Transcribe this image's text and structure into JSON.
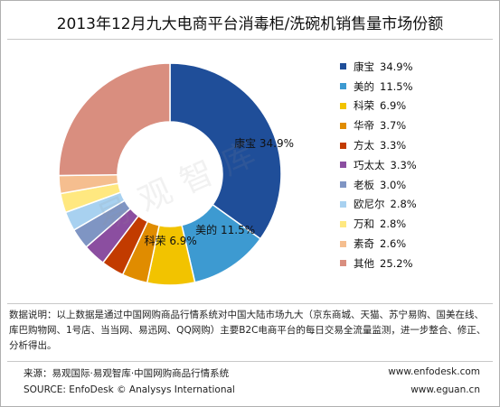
{
  "title": "2013年12月九大电商平台消毒柜/洗碗机销售量市场份额",
  "chart_data": {
    "type": "pie",
    "donut": true,
    "categories": [
      "康宝",
      "美的",
      "科荣",
      "华帝",
      "方太",
      "巧太太",
      "老板",
      "欧尼尔",
      "万和",
      "素奇",
      "其他"
    ],
    "values": [
      34.9,
      11.5,
      6.9,
      3.7,
      3.3,
      3.3,
      3.0,
      2.8,
      2.8,
      2.6,
      25.2
    ],
    "value_labels": [
      "34.9%",
      "11.5%",
      "6.9%",
      "3.7%",
      "3.3%",
      "3.3%",
      "3.0%",
      "2.8%",
      "2.8%",
      "2.6%",
      "25.2%"
    ],
    "colors": [
      "#1f4e99",
      "#3d9ad1",
      "#f2c300",
      "#e08c00",
      "#c23b00",
      "#8b4ea0",
      "#7f95c3",
      "#a8d1f0",
      "#ffe880",
      "#f5be8f",
      "#d98e7f"
    ],
    "data_labels": [
      {
        "index": 0,
        "text": "康宝   34.9%"
      },
      {
        "index": 1,
        "text": "美的   11.5%"
      },
      {
        "index": 2,
        "text": "科荣   6.9%"
      }
    ],
    "legend_position": "right",
    "start_angle": "top",
    "direction": "clockwise"
  },
  "watermark": "易观智库",
  "note": "数据说明：以上数据是通过中国网购商品行情系统对中国大陆市场九大（京东商城、天猫、苏宁易购、国美在线、库巴购物网、1号店、当当网、易迅网、QQ网购）主要B2C电商平台的每日交易全流量监测，进一步整合、修正、分析得出。",
  "footer": {
    "source_cn": "来源：易观国际·易观智库·中国网购商品行情系统",
    "source_en": "SOURCE: EnfoDesk © Analysys International",
    "url1": "www.enfodesk.com",
    "url2": "www.eguan.cn"
  }
}
